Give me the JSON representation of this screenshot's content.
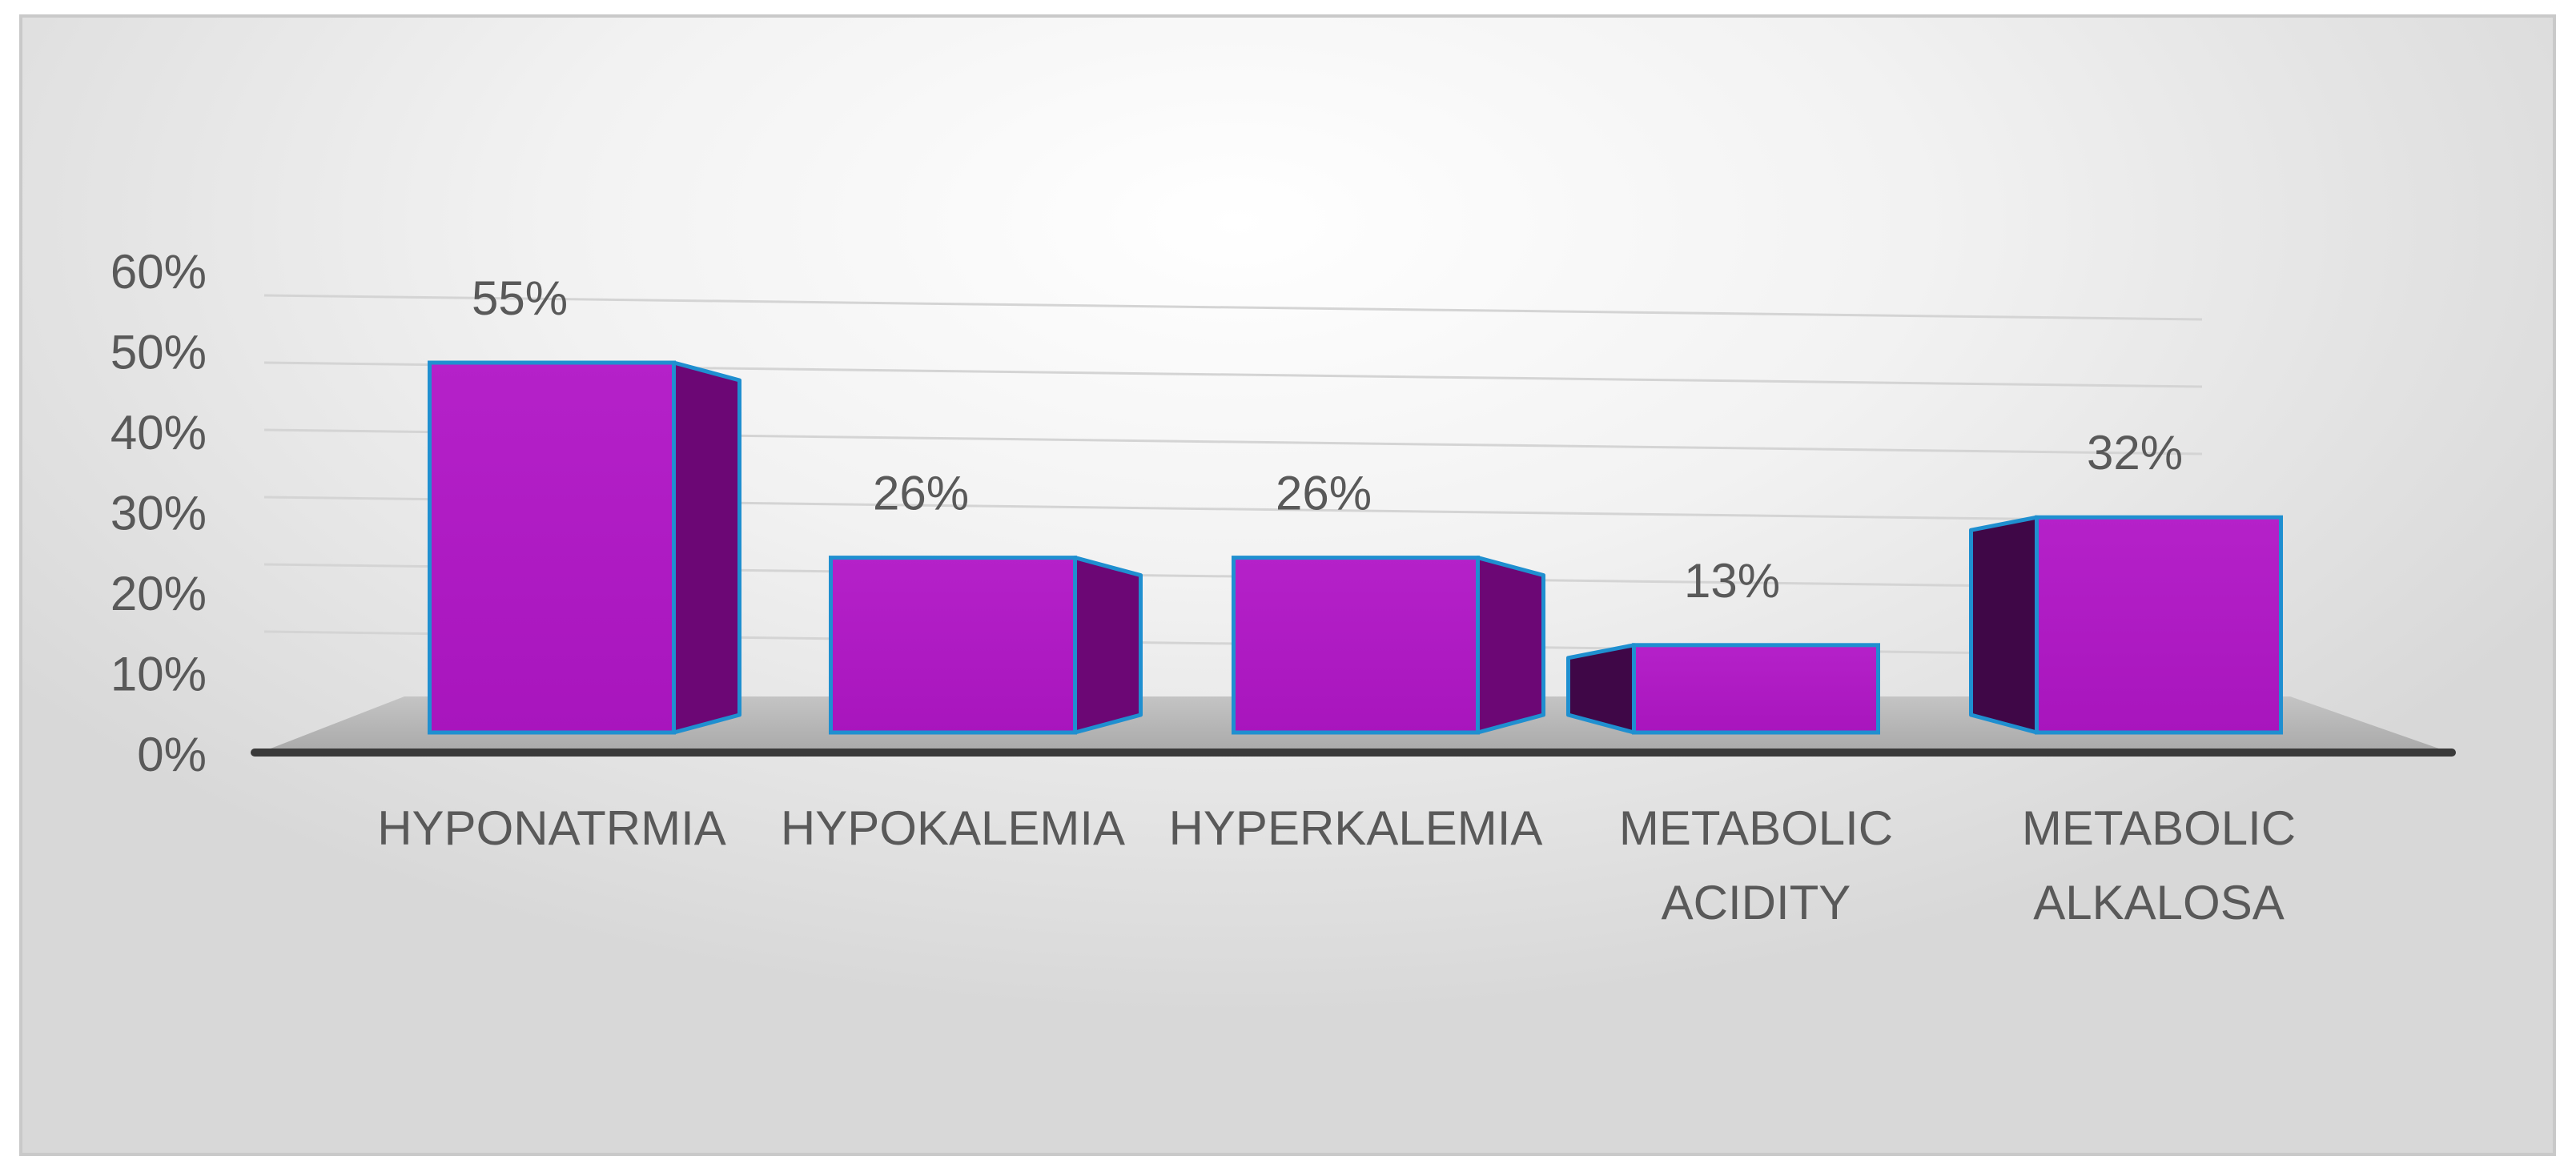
{
  "chart_data": {
    "type": "bar",
    "style": "3d-column",
    "categories": [
      [
        "HYPONATRMIA"
      ],
      [
        "HYPOKALEMIA"
      ],
      [
        "HYPERKALEMIA"
      ],
      [
        "METABOLIC",
        "ACIDITY"
      ],
      [
        "METABOLIC",
        "ALKALOSA"
      ]
    ],
    "values": [
      55,
      26,
      26,
      13,
      32
    ],
    "data_labels": [
      "55%",
      "26%",
      "26%",
      "13%",
      "32%"
    ],
    "y_ticks": [
      "0%",
      "10%",
      "20%",
      "30%",
      "40%",
      "50%",
      "60%"
    ],
    "ylim": [
      0,
      60
    ],
    "y_unit": "%",
    "grid": true,
    "title": "",
    "xlabel": "",
    "ylabel": "",
    "legend": "none"
  },
  "colors": {
    "bar_front": "#b31ec8",
    "bar_side_dark": "#3f0747",
    "bar_side_mid": "#6c0775",
    "bar_edge": "#1f8fd0",
    "floor": "#b8b8b8",
    "axis_line": "#3a3a3a",
    "text": "#595959",
    "grid": "#d4d4d4"
  }
}
